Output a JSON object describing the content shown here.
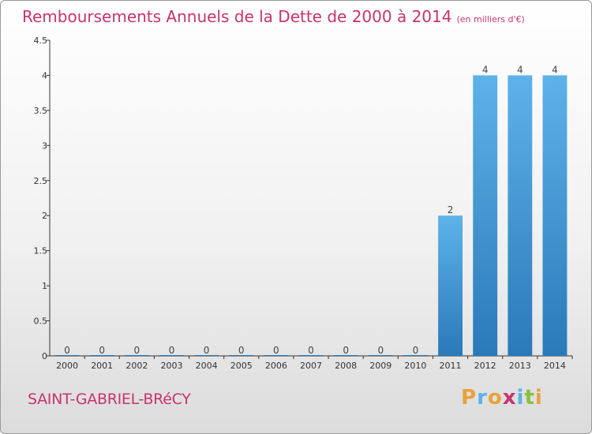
{
  "title": "Remboursements Annuels de la Dette de 2000 à 2014",
  "subtitle": "(en milliers d'€)",
  "commune": "SAINT-GABRIEL-BRéCY",
  "logo": {
    "text": "Proxiti",
    "colors": [
      "#e8a23a",
      "#5ab2e8",
      "#e8a23a",
      "#c8336e",
      "#5ab2e8",
      "#8bbf3f",
      "#e8a23a"
    ]
  },
  "colors": {
    "title": "#c8336e",
    "bar_light": "#5eb2ea",
    "bar_dark": "#2a79b9",
    "axis": "#333333"
  },
  "chart_data": {
    "type": "bar",
    "categories": [
      "2000",
      "2001",
      "2002",
      "2003",
      "2004",
      "2005",
      "2006",
      "2007",
      "2008",
      "2009",
      "2010",
      "2011",
      "2012",
      "2013",
      "2014"
    ],
    "values": [
      0,
      0,
      0,
      0,
      0,
      0,
      0,
      0,
      0,
      0,
      0,
      2,
      4,
      4,
      4
    ],
    "data_labels": [
      "0",
      "0",
      "0",
      "0",
      "0",
      "0",
      "0",
      "0",
      "0",
      "0",
      "0",
      "2",
      "4",
      "4",
      "4"
    ],
    "y_ticks": [
      {
        "value": 0,
        "label": "0"
      },
      {
        "value": 0.5,
        "label": "0.5"
      },
      {
        "value": 1,
        "label": "1"
      },
      {
        "value": 1.5,
        "label": "1.5"
      },
      {
        "value": 2,
        "label": "2"
      },
      {
        "value": 2.5,
        "label": "2.5"
      },
      {
        "value": 3,
        "label": "3"
      },
      {
        "value": 3.5,
        "label": "3.5"
      },
      {
        "value": 4,
        "label": "4"
      },
      {
        "value": 4.5,
        "label": "4.5"
      }
    ],
    "ylim": [
      0,
      4.5
    ],
    "xlabel": "",
    "ylabel": "",
    "grid": false,
    "legend": "none"
  }
}
